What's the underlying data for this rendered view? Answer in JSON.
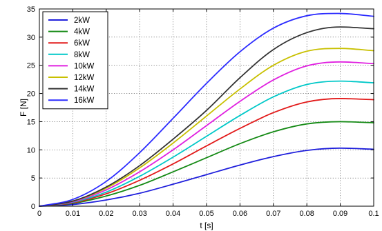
{
  "chart_data": {
    "type": "line",
    "xlabel": "t [s]",
    "ylabel": "F [N]",
    "xlim": [
      0,
      0.1
    ],
    "ylim": [
      0,
      35
    ],
    "x_ticks": [
      0,
      0.01,
      0.02,
      0.03,
      0.04,
      0.05,
      0.06,
      0.07,
      0.08,
      0.09,
      0.1
    ],
    "x_tick_labels": [
      "0",
      "0.01",
      "0.02",
      "0.03",
      "0.04",
      "0.05",
      "0.06",
      "0.07",
      "0.08",
      "0.09",
      "0.1"
    ],
    "y_ticks": [
      0,
      5,
      10,
      15,
      20,
      25,
      30,
      35
    ],
    "y_tick_labels": [
      "0",
      "5",
      "10",
      "15",
      "20",
      "25",
      "30",
      "35"
    ],
    "grid": true,
    "legend_position": "top-left",
    "x": [
      0,
      0.01,
      0.02,
      0.03,
      0.04,
      0.05,
      0.06,
      0.07,
      0.08,
      0.09,
      0.1
    ],
    "series": [
      {
        "name": "2kW",
        "color": "#1f1fdc",
        "values": [
          0,
          0.3,
          1.1,
          2.3,
          3.9,
          5.6,
          7.3,
          8.8,
          9.9,
          10.3,
          10.1
        ]
      },
      {
        "name": "4kW",
        "color": "#158a15",
        "values": [
          0,
          0.5,
          1.8,
          3.7,
          6.1,
          8.6,
          11.1,
          13.2,
          14.6,
          15.0,
          14.8
        ]
      },
      {
        "name": "6kW",
        "color": "#e21a1a",
        "values": [
          0,
          0.6,
          2.2,
          4.6,
          7.5,
          10.7,
          13.8,
          16.6,
          18.5,
          19.1,
          18.9
        ]
      },
      {
        "name": "8kW",
        "color": "#00c8c8",
        "values": [
          0,
          0.7,
          2.5,
          5.3,
          8.7,
          12.4,
          16.1,
          19.4,
          21.6,
          22.2,
          21.9
        ]
      },
      {
        "name": "10kW",
        "color": "#e020e0",
        "values": [
          0,
          0.8,
          2.9,
          6.1,
          10.0,
          14.3,
          18.6,
          22.4,
          24.9,
          25.6,
          25.3
        ]
      },
      {
        "name": "12kW",
        "color": "#c8c000",
        "values": [
          0,
          0.9,
          3.2,
          6.8,
          11.2,
          16.0,
          20.8,
          25.0,
          27.5,
          28.0,
          27.6
        ]
      },
      {
        "name": "14kW",
        "color": "#333333",
        "values": [
          0,
          0.9,
          3.4,
          7.2,
          11.9,
          17.0,
          22.8,
          27.8,
          30.8,
          31.8,
          31.5
        ]
      },
      {
        "name": "16kW",
        "color": "#2b2bff",
        "values": [
          0,
          1.2,
          4.4,
          9.5,
          15.6,
          21.8,
          27.4,
          31.6,
          33.8,
          34.2,
          33.7
        ]
      }
    ]
  }
}
